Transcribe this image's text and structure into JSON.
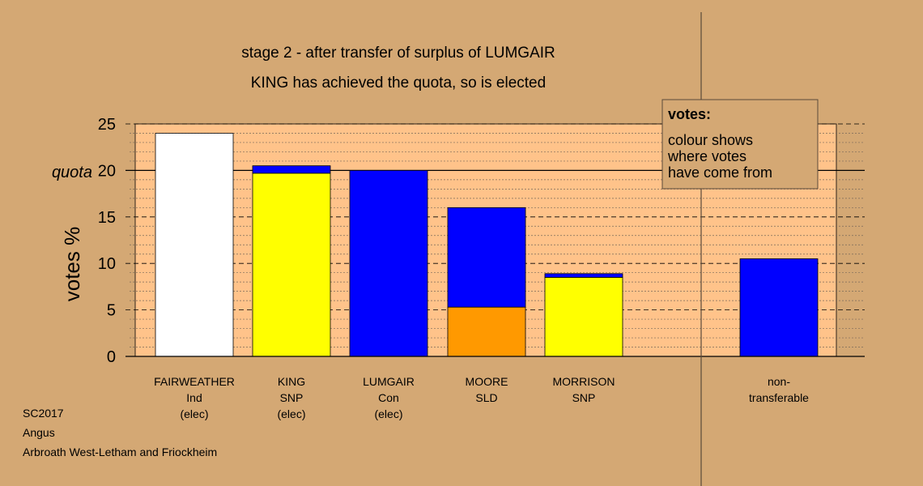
{
  "chart_data": {
    "type": "bar",
    "title": "stage 2 - after transfer of surplus of LUMGAIR",
    "subtitle": "KING has achieved the quota, so is elected",
    "ylabel": "votes %",
    "quota_label": "quota",
    "quota": 20,
    "ylim": [
      0,
      25
    ],
    "yticks": [
      "0",
      "5",
      "10",
      "15",
      "20",
      "25"
    ],
    "grid": true,
    "legend_title": "votes:",
    "legend_lines": [
      "colour shows",
      "where votes",
      "have come from"
    ],
    "legend_position": "top-right",
    "categories": [
      {
        "lines": [
          "FAIRWEATHER",
          "Ind",
          "(elec)"
        ],
        "segments": [
          {
            "value": 24.0,
            "color": "#ffffff"
          }
        ]
      },
      {
        "lines": [
          "KING",
          "SNP",
          "(elec)"
        ],
        "segments": [
          {
            "value": 19.7,
            "color": "#ffff00"
          },
          {
            "value": 0.8,
            "color": "#0000ff"
          }
        ]
      },
      {
        "lines": [
          "LUMGAIR",
          "Con",
          "(elec)"
        ],
        "segments": [
          {
            "value": 20.0,
            "color": "#0000ff"
          }
        ]
      },
      {
        "lines": [
          "MOORE",
          "SLD"
        ],
        "segments": [
          {
            "value": 5.3,
            "color": "#ff9900"
          },
          {
            "value": 10.7,
            "color": "#0000ff"
          }
        ]
      },
      {
        "lines": [
          "MORRISON",
          "SNP"
        ],
        "segments": [
          {
            "value": 8.5,
            "color": "#ffff00"
          },
          {
            "value": 0.4,
            "color": "#0000ff"
          }
        ]
      },
      {
        "lines": [
          "non-",
          "transferable"
        ],
        "segments": [
          {
            "value": 10.5,
            "color": "#0000ff"
          }
        ]
      }
    ]
  },
  "footer": {
    "year": "SC2017",
    "council": "Angus",
    "ward": "Arbroath West-Letham and Friockheim"
  },
  "colors": {
    "background": "#d4a874",
    "plot_background": "#ffc38a"
  }
}
